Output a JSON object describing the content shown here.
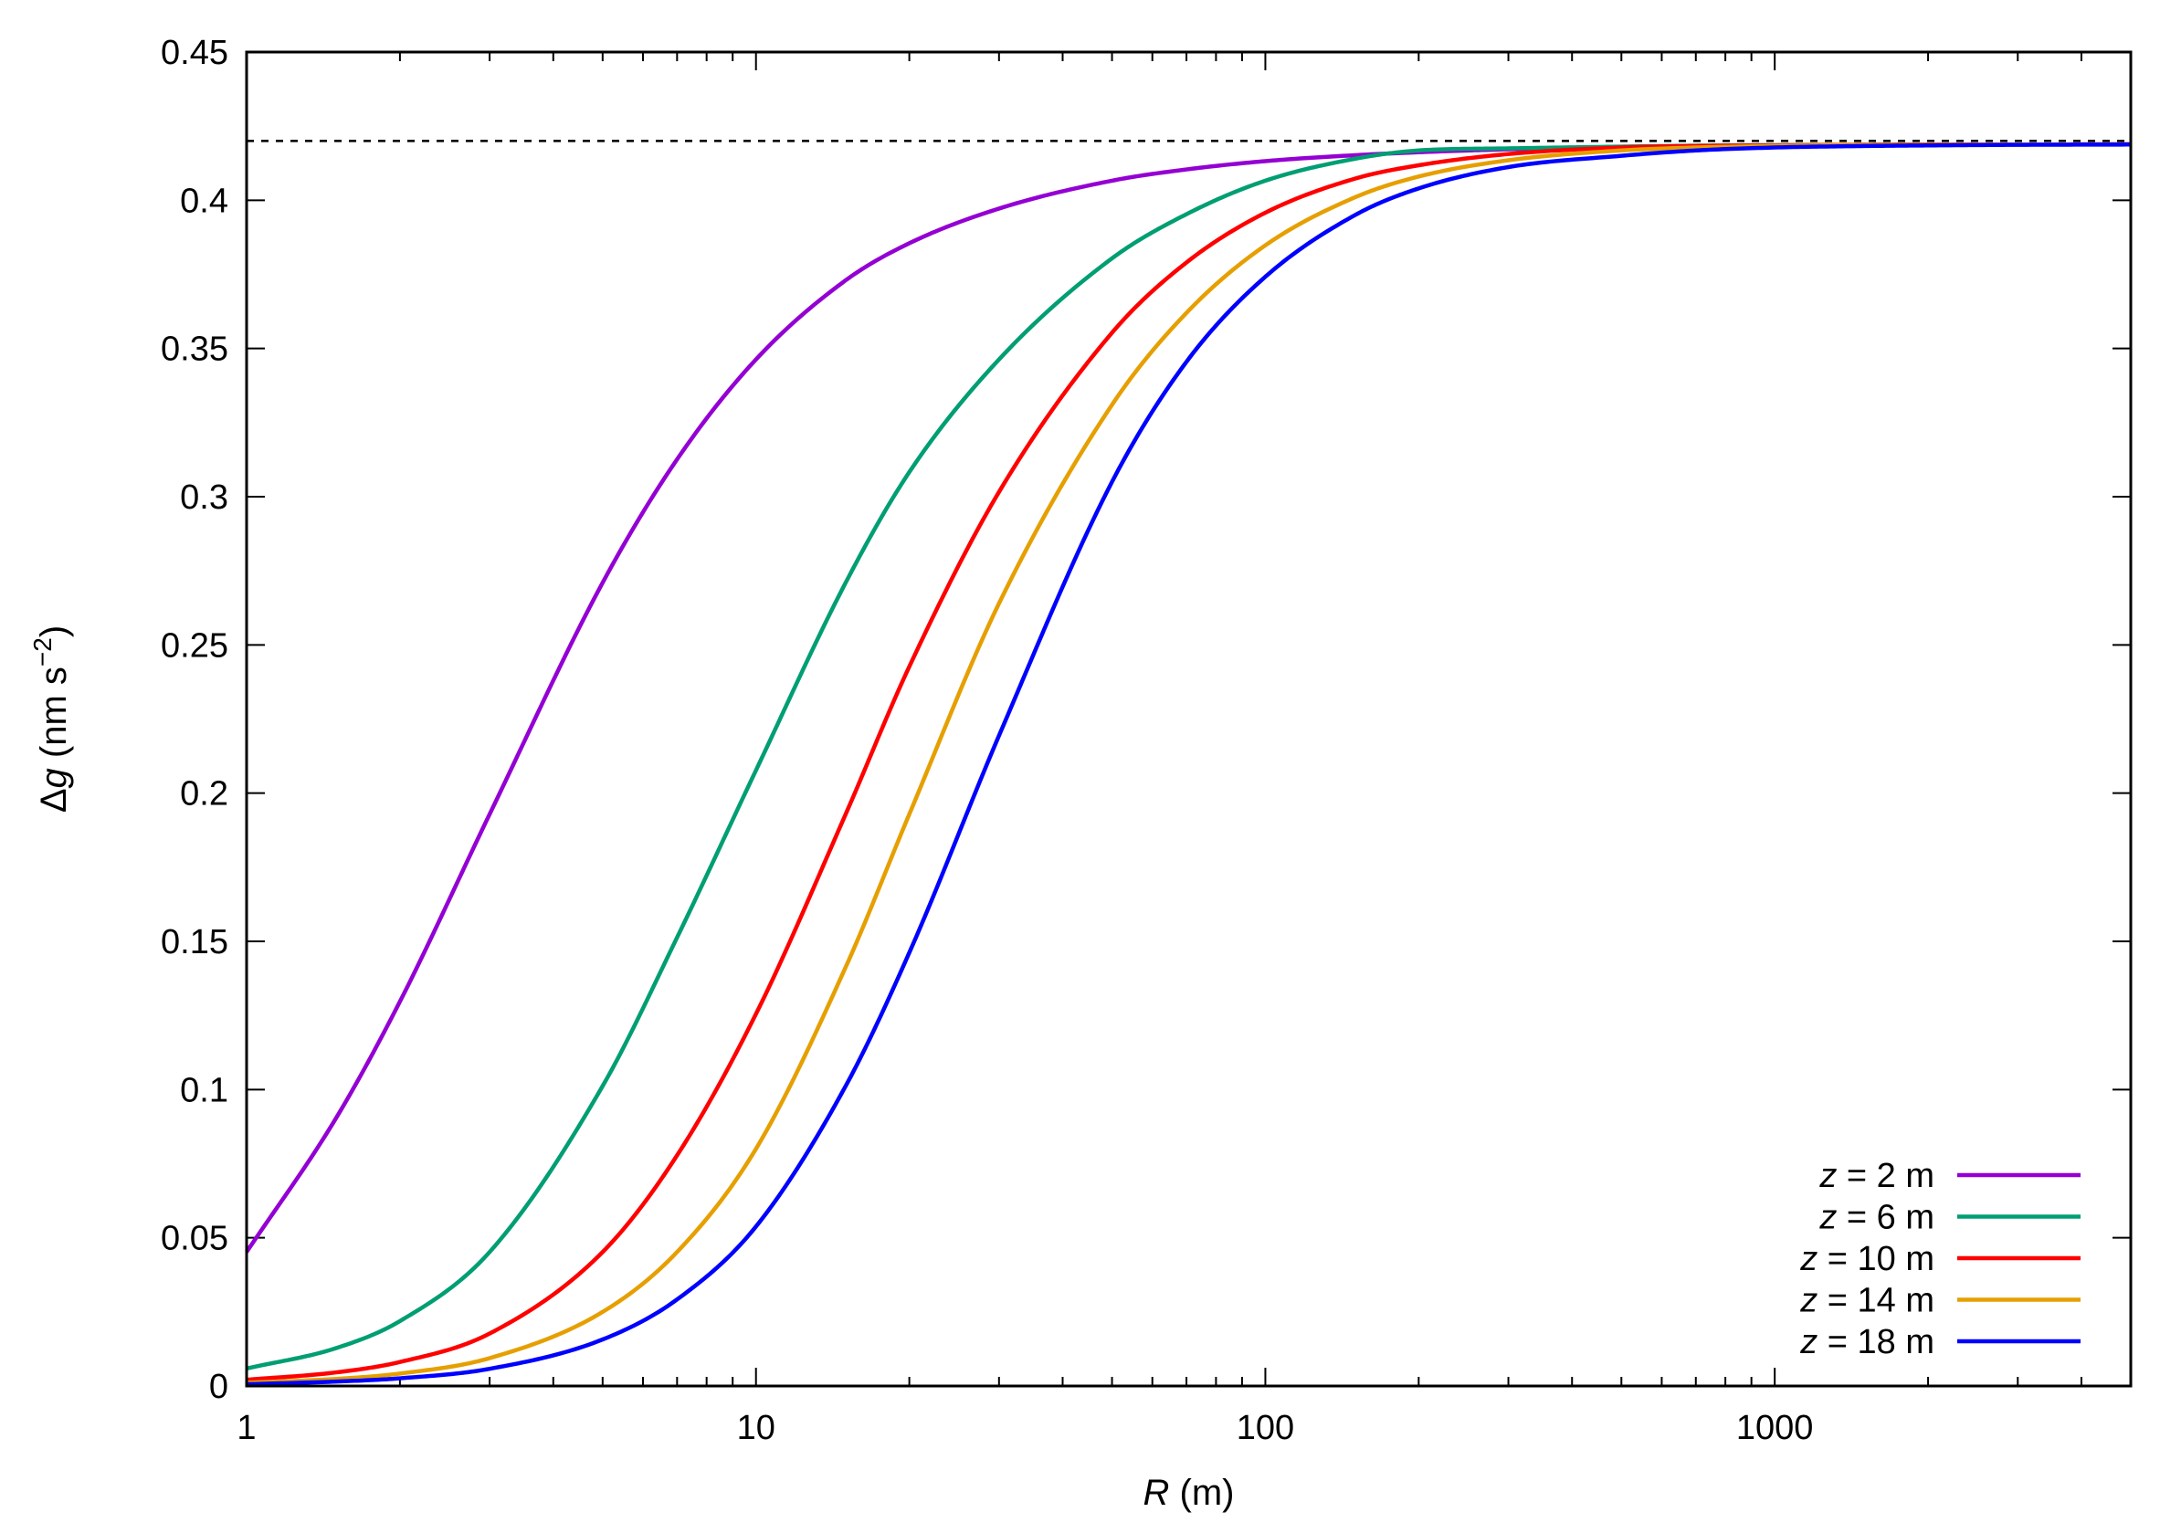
{
  "chart_data": {
    "type": "line",
    "title": "",
    "xlabel": "R (m)",
    "xlabel_var": "R",
    "xlabel_unit": " (m)",
    "ylabel": "Δg (nm s−2)",
    "ylabel_prefix": "Δ",
    "ylabel_var": "g",
    "ylabel_unit": " (nm s",
    "ylabel_exp": "−2",
    "ylabel_close": ")",
    "xscale": "log",
    "xlim": [
      1,
      5000
    ],
    "ylim": [
      0,
      0.45
    ],
    "grid": false,
    "legend_position": "bottom-right",
    "x_ticks": [
      {
        "value": 1,
        "label": "1"
      },
      {
        "value": 10,
        "label": "10"
      },
      {
        "value": 100,
        "label": "100"
      },
      {
        "value": 1000,
        "label": "1000"
      }
    ],
    "y_ticks": [
      {
        "value": 0,
        "label": "0"
      },
      {
        "value": 0.05,
        "label": "0.05"
      },
      {
        "value": 0.1,
        "label": "0.1"
      },
      {
        "value": 0.15,
        "label": "0.15"
      },
      {
        "value": 0.2,
        "label": "0.2"
      },
      {
        "value": 0.25,
        "label": "0.25"
      },
      {
        "value": 0.3,
        "label": "0.3"
      },
      {
        "value": 0.35,
        "label": "0.35"
      },
      {
        "value": 0.4,
        "label": "0.4"
      },
      {
        "value": 0.45,
        "label": "0.45"
      }
    ],
    "reference_line": {
      "y": 0.42,
      "style": "dashed",
      "color": "#000000"
    },
    "x": [
      1,
      1.5,
      2,
      3,
      5,
      7,
      10,
      15,
      20,
      30,
      50,
      70,
      100,
      150,
      200,
      300,
      500,
      700,
      1000,
      1500,
      2000,
      3000,
      5000
    ],
    "series": [
      {
        "name": "z = 2 m",
        "var": "z",
        "rest": " = 2 m",
        "color": "#9400d3",
        "values": [
          0.0452,
          0.0905,
          0.1297,
          0.1929,
          0.271,
          0.3126,
          0.3463,
          0.373,
          0.3855,
          0.3972,
          0.4066,
          0.4104,
          0.4132,
          0.4152,
          0.4162,
          0.4172,
          0.418,
          0.4183,
          0.4185,
          0.4187,
          0.4188,
          0.4188,
          0.4189
        ]
      },
      {
        "name": "z = 6 m",
        "var": "z",
        "rest": " = 6 m",
        "color": "#009e73",
        "values": [
          0.0059,
          0.0128,
          0.0219,
          0.0452,
          0.1012,
          0.1513,
          0.2077,
          0.271,
          0.3083,
          0.3463,
          0.3804,
          0.3953,
          0.4066,
          0.414,
          0.4168,
          0.4175,
          0.4181,
          0.4184,
          0.4186,
          0.4187,
          0.4188,
          0.4188,
          0.4189
        ]
      },
      {
        "name": "z = 10 m",
        "var": "z",
        "rest": " = 10 m",
        "color": "#ff0000",
        "values": [
          0.0021,
          0.0046,
          0.0081,
          0.0177,
          0.0452,
          0.0778,
          0.1255,
          0.1929,
          0.2427,
          0.3016,
          0.3553,
          0.379,
          0.3958,
          0.4073,
          0.4118,
          0.4156,
          0.4178,
          0.4183,
          0.4185,
          0.4187,
          0.4188,
          0.4188,
          0.4189
        ]
      },
      {
        "name": "z = 14 m",
        "var": "z",
        "rest": " = 14 m",
        "color": "#e69f00",
        "values": [
          0.0011,
          0.0024,
          0.0042,
          0.0094,
          0.025,
          0.0452,
          0.08,
          0.1413,
          0.1929,
          0.264,
          0.331,
          0.362,
          0.3848,
          0.401,
          0.408,
          0.4135,
          0.4168,
          0.4178,
          0.4183,
          0.4186,
          0.4187,
          0.4188,
          0.4189
        ]
      },
      {
        "name": "z = 18 m",
        "var": "z",
        "rest": " = 18 m",
        "color": "#0000ff",
        "values": [
          0.0006,
          0.0015,
          0.0026,
          0.0058,
          0.0157,
          0.0292,
          0.0538,
          0.1012,
          0.1462,
          0.2194,
          0.305,
          0.3455,
          0.3742,
          0.395,
          0.404,
          0.4112,
          0.415,
          0.4168,
          0.4178,
          0.4183,
          0.4185,
          0.4187,
          0.4188
        ]
      }
    ]
  }
}
